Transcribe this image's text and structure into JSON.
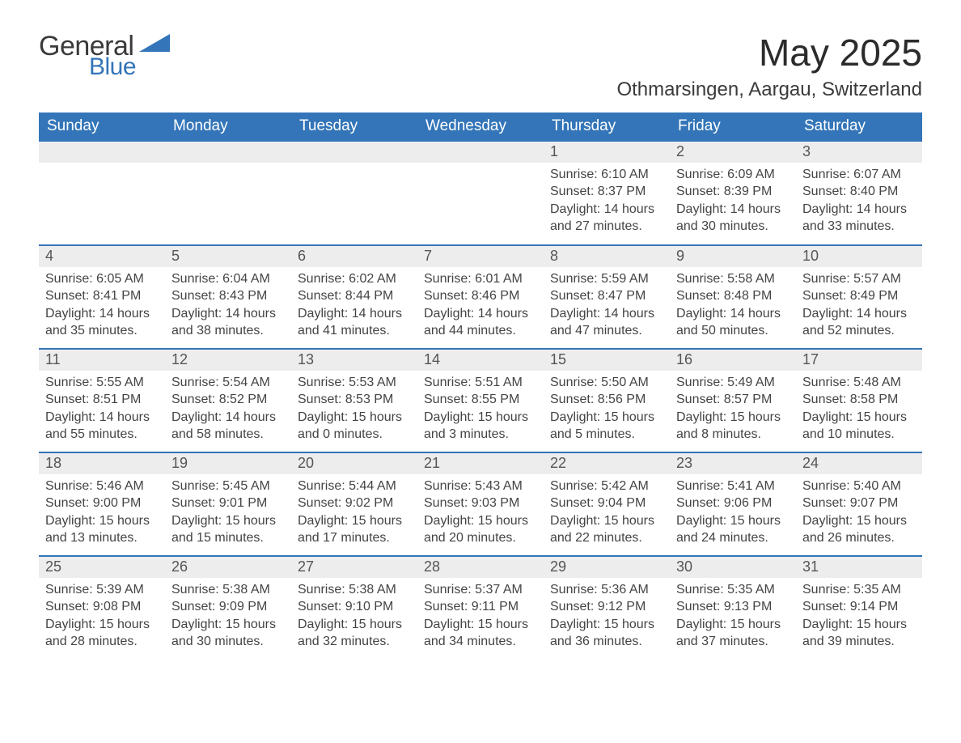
{
  "colors": {
    "accent": "#3375b8",
    "header_text": "#ffffff",
    "stripe": "#ededed",
    "row_border": "#3375b8",
    "body_text": "#444444",
    "page_bg": "#ffffff",
    "logo_dark": "#3a3a3a"
  },
  "logo": {
    "line1": "General",
    "line2": "Blue"
  },
  "title": "May 2025",
  "location": "Othmarsingen, Aargau, Switzerland",
  "weekdays": [
    "Sunday",
    "Monday",
    "Tuesday",
    "Wednesday",
    "Thursday",
    "Friday",
    "Saturday"
  ],
  "labels": {
    "sunrise": "Sunrise",
    "sunset": "Sunset",
    "daylight": "Daylight"
  },
  "grid": {
    "first_weekday_index": 4,
    "num_days": 31
  },
  "days": {
    "1": {
      "sunrise": "6:10 AM",
      "sunset": "8:37 PM",
      "daylight": "14 hours and 27 minutes."
    },
    "2": {
      "sunrise": "6:09 AM",
      "sunset": "8:39 PM",
      "daylight": "14 hours and 30 minutes."
    },
    "3": {
      "sunrise": "6:07 AM",
      "sunset": "8:40 PM",
      "daylight": "14 hours and 33 minutes."
    },
    "4": {
      "sunrise": "6:05 AM",
      "sunset": "8:41 PM",
      "daylight": "14 hours and 35 minutes."
    },
    "5": {
      "sunrise": "6:04 AM",
      "sunset": "8:43 PM",
      "daylight": "14 hours and 38 minutes."
    },
    "6": {
      "sunrise": "6:02 AM",
      "sunset": "8:44 PM",
      "daylight": "14 hours and 41 minutes."
    },
    "7": {
      "sunrise": "6:01 AM",
      "sunset": "8:46 PM",
      "daylight": "14 hours and 44 minutes."
    },
    "8": {
      "sunrise": "5:59 AM",
      "sunset": "8:47 PM",
      "daylight": "14 hours and 47 minutes."
    },
    "9": {
      "sunrise": "5:58 AM",
      "sunset": "8:48 PM",
      "daylight": "14 hours and 50 minutes."
    },
    "10": {
      "sunrise": "5:57 AM",
      "sunset": "8:49 PM",
      "daylight": "14 hours and 52 minutes."
    },
    "11": {
      "sunrise": "5:55 AM",
      "sunset": "8:51 PM",
      "daylight": "14 hours and 55 minutes."
    },
    "12": {
      "sunrise": "5:54 AM",
      "sunset": "8:52 PM",
      "daylight": "14 hours and 58 minutes."
    },
    "13": {
      "sunrise": "5:53 AM",
      "sunset": "8:53 PM",
      "daylight": "15 hours and 0 minutes."
    },
    "14": {
      "sunrise": "5:51 AM",
      "sunset": "8:55 PM",
      "daylight": "15 hours and 3 minutes."
    },
    "15": {
      "sunrise": "5:50 AM",
      "sunset": "8:56 PM",
      "daylight": "15 hours and 5 minutes."
    },
    "16": {
      "sunrise": "5:49 AM",
      "sunset": "8:57 PM",
      "daylight": "15 hours and 8 minutes."
    },
    "17": {
      "sunrise": "5:48 AM",
      "sunset": "8:58 PM",
      "daylight": "15 hours and 10 minutes."
    },
    "18": {
      "sunrise": "5:46 AM",
      "sunset": "9:00 PM",
      "daylight": "15 hours and 13 minutes."
    },
    "19": {
      "sunrise": "5:45 AM",
      "sunset": "9:01 PM",
      "daylight": "15 hours and 15 minutes."
    },
    "20": {
      "sunrise": "5:44 AM",
      "sunset": "9:02 PM",
      "daylight": "15 hours and 17 minutes."
    },
    "21": {
      "sunrise": "5:43 AM",
      "sunset": "9:03 PM",
      "daylight": "15 hours and 20 minutes."
    },
    "22": {
      "sunrise": "5:42 AM",
      "sunset": "9:04 PM",
      "daylight": "15 hours and 22 minutes."
    },
    "23": {
      "sunrise": "5:41 AM",
      "sunset": "9:06 PM",
      "daylight": "15 hours and 24 minutes."
    },
    "24": {
      "sunrise": "5:40 AM",
      "sunset": "9:07 PM",
      "daylight": "15 hours and 26 minutes."
    },
    "25": {
      "sunrise": "5:39 AM",
      "sunset": "9:08 PM",
      "daylight": "15 hours and 28 minutes."
    },
    "26": {
      "sunrise": "5:38 AM",
      "sunset": "9:09 PM",
      "daylight": "15 hours and 30 minutes."
    },
    "27": {
      "sunrise": "5:38 AM",
      "sunset": "9:10 PM",
      "daylight": "15 hours and 32 minutes."
    },
    "28": {
      "sunrise": "5:37 AM",
      "sunset": "9:11 PM",
      "daylight": "15 hours and 34 minutes."
    },
    "29": {
      "sunrise": "5:36 AM",
      "sunset": "9:12 PM",
      "daylight": "15 hours and 36 minutes."
    },
    "30": {
      "sunrise": "5:35 AM",
      "sunset": "9:13 PM",
      "daylight": "15 hours and 37 minutes."
    },
    "31": {
      "sunrise": "5:35 AM",
      "sunset": "9:14 PM",
      "daylight": "15 hours and 39 minutes."
    }
  }
}
